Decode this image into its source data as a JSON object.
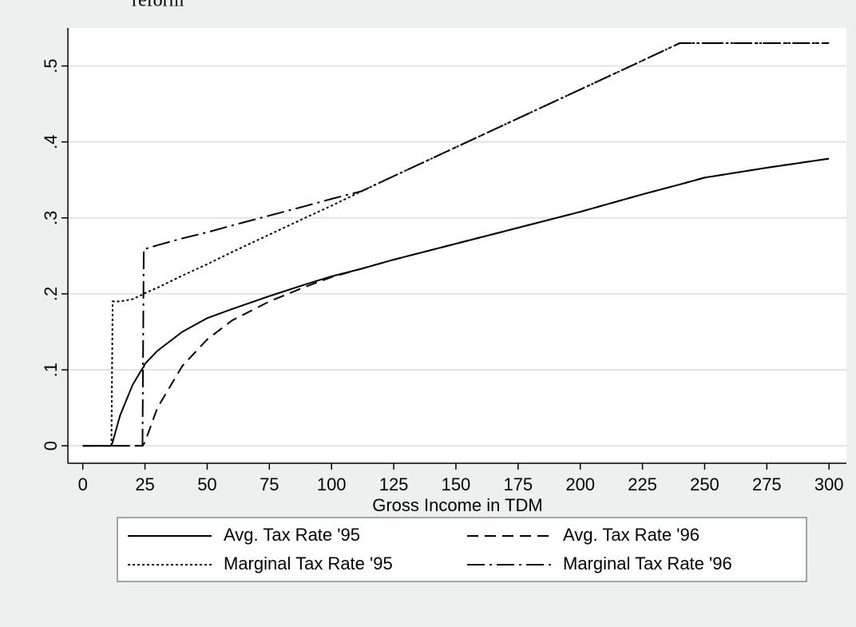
{
  "chart_data": {
    "type": "line",
    "title": "reform",
    "x_label": "Gross Income in TDM",
    "x": [
      0,
      5,
      11.5,
      12,
      15,
      20,
      24,
      24.5,
      25,
      30,
      40,
      50,
      60,
      75,
      90,
      100,
      112,
      125,
      150,
      175,
      200,
      225,
      240,
      250,
      275,
      300
    ],
    "series": [
      {
        "name": "Avg. Tax Rate '95",
        "color": "#000000",
        "style": "solid",
        "values": [
          0,
          0,
          0,
          0.005,
          0.04,
          0.08,
          0.102,
          0.104,
          0.108,
          0.125,
          0.15,
          0.168,
          0.18,
          0.197,
          0.213,
          0.223,
          0.233,
          0.245,
          0.266,
          0.287,
          0.308,
          0.331,
          0.344,
          0.353,
          0.366,
          0.378
        ]
      },
      {
        "name": "Avg. Tax Rate '96",
        "color": "#000000",
        "style": "dash",
        "values": [
          0,
          0,
          0,
          0,
          0,
          0,
          0,
          0.002,
          0.005,
          0.05,
          0.105,
          0.14,
          0.165,
          0.19,
          0.21,
          0.222,
          0.233,
          0.245,
          0.266,
          0.287,
          0.308,
          0.331,
          0.344,
          0.353,
          0.366,
          0.378
        ]
      },
      {
        "name": "Marginal Tax Rate '95",
        "color": "#000000",
        "style": "dot",
        "values": [
          0,
          0,
          0,
          0.19,
          0.19,
          0.193,
          0.199,
          0.2,
          0.201,
          0.208,
          0.224,
          0.239,
          0.255,
          0.278,
          0.301,
          0.316,
          0.335,
          0.355,
          0.393,
          0.431,
          0.469,
          0.507,
          0.53,
          0.53,
          0.53,
          0.53
        ]
      },
      {
        "name": "Marginal Tax Rate '96",
        "color": "#000000",
        "style": "dashdot",
        "values": [
          0,
          0,
          0,
          0,
          0,
          0,
          0,
          0.259,
          0.259,
          0.264,
          0.273,
          0.281,
          0.29,
          0.303,
          0.316,
          0.325,
          0.335,
          0.355,
          0.393,
          0.431,
          0.469,
          0.507,
          0.53,
          0.53,
          0.53,
          0.53
        ]
      }
    ],
    "xlim": [
      -6,
      307
    ],
    "ylim": [
      -0.023,
      0.55
    ],
    "xticks": [
      0,
      25,
      50,
      75,
      100,
      125,
      150,
      175,
      200,
      225,
      250,
      275,
      300
    ],
    "yticks": [
      0,
      {
        "value": 0.1,
        "label": ".1"
      },
      {
        "value": 0.2,
        "label": ".2"
      },
      {
        "value": 0.3,
        "label": ".3"
      },
      {
        "value": 0.4,
        "label": ".4"
      },
      {
        "value": 0.5,
        "label": ".5"
      }
    ],
    "grid": true,
    "legend": "bottom"
  }
}
